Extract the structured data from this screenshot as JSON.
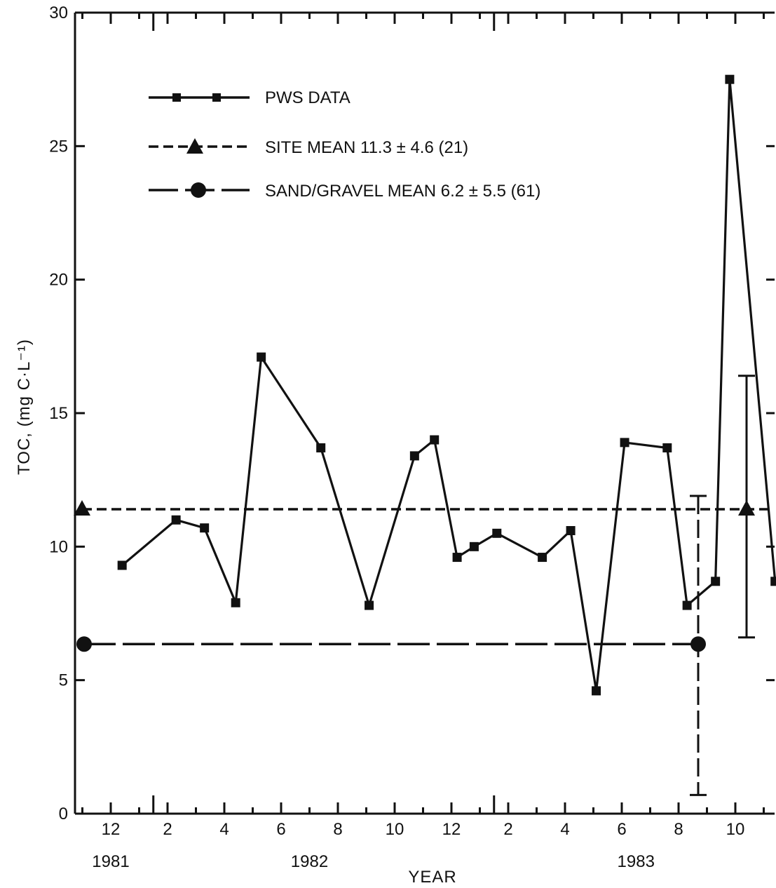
{
  "chart_data": {
    "type": "line",
    "xlabel": "YEAR",
    "ylabel": "TOC, (mg C·L⁻¹)",
    "ylim": [
      0,
      30
    ],
    "y_ticks": [
      "0",
      "5",
      "10",
      "15",
      "20",
      "25",
      "30"
    ],
    "x_tick_labels": [
      "12",
      "2",
      "4",
      "6",
      "8",
      "10",
      "12",
      "2",
      "4",
      "6",
      "8",
      "10",
      "12"
    ],
    "year_labels": [
      "1981",
      "1982",
      "1983"
    ],
    "grid": false,
    "legend": {
      "placement": "top-left",
      "entries": [
        {
          "label": "PWS DATA",
          "style": "solid-square"
        },
        {
          "label": "SITE MEAN 11.3 ± 4.6 (21)",
          "style": "dashed-triangle"
        },
        {
          "label": "SAND/GRAVEL MEAN 6.2 ± 5.5 (61)",
          "style": "longdash-circle"
        }
      ]
    },
    "series": [
      {
        "name": "PWS DATA",
        "x": [
          0.4,
          2.3,
          3.3,
          4.4,
          5.3,
          7.4,
          9.1,
          10.7,
          11.4,
          12.2,
          12.8,
          13.6,
          15.2,
          16.2,
          17.1,
          18.1,
          19.6,
          20.3,
          21.3,
          21.8,
          23.4
        ],
        "values": [
          9.3,
          11.0,
          10.7,
          7.9,
          17.1,
          13.7,
          7.8,
          13.4,
          14.0,
          9.6,
          10.0,
          10.5,
          9.6,
          10.6,
          4.6,
          13.9,
          13.7,
          7.8,
          8.7,
          27.5,
          8.7
        ]
      }
    ],
    "site_mean": {
      "value": 11.3,
      "sd": 4.6,
      "n": 21,
      "color": "#111111"
    },
    "sand_gravel_mean": {
      "value": 6.2,
      "sd": 5.5,
      "n": 61,
      "color": "#111111"
    }
  }
}
